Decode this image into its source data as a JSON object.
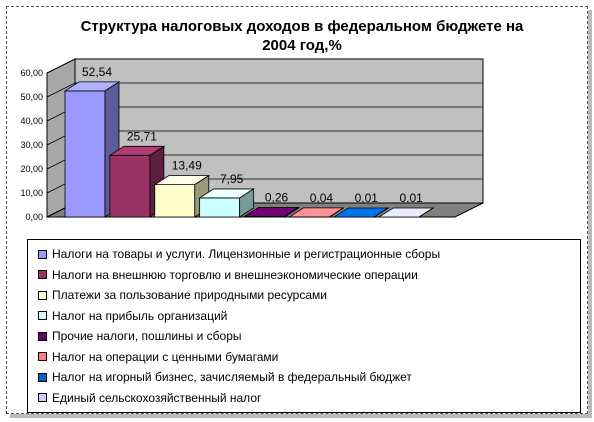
{
  "chart_data": {
    "type": "bar",
    "title": "Структура налоговых доходов в федеральном бюджете на 2004 год,%",
    "categories": [
      "Налоги на товары и услуги. Лицензионные и регистрационные сборы",
      "Налоги на внешнюю торговлю и внешнеэкономические операции",
      "Платежи за пользование природными ресурсами",
      "Налог на прибыль организаций",
      "Прочие налоги, пошлины и сборы",
      "Налог на операции с ценными бумагами",
      "Налог на игорный бизнес, зачисляемый в федеральный бюджет",
      "Единый сельскохозяйственный налог"
    ],
    "values": [
      52.54,
      25.71,
      13.49,
      7.95,
      0.26,
      0.04,
      0.01,
      0.01
    ],
    "value_labels": [
      "52,54",
      "25,71",
      "13,49",
      "7,95",
      "0,26",
      "0,04",
      "0,01",
      "0,01"
    ],
    "colors": [
      "#9999ff",
      "#993366",
      "#ffffcc",
      "#ccffff",
      "#660066",
      "#ff8080",
      "#0066cc",
      "#ccccff"
    ],
    "y_ticks": [
      "0,00",
      "10,00",
      "20,00",
      "30,00",
      "40,00",
      "50,00",
      "60,00"
    ],
    "ylim": [
      0,
      60
    ],
    "grid": true,
    "legend_position": "bottom",
    "three_d": true
  }
}
